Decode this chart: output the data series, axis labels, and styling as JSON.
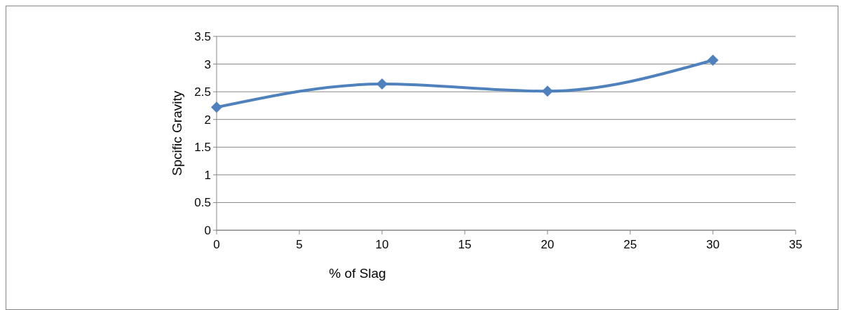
{
  "chart_data": {
    "type": "line",
    "xlabel": "% of Slag",
    "ylabel": "Spcific Gravity",
    "x": [
      0,
      10,
      20,
      30
    ],
    "series": [
      {
        "color": "#4f81bd",
        "values": [
          2.22,
          2.64,
          2.51,
          3.07
        ]
      }
    ],
    "xlim": [
      0,
      35
    ],
    "xticks": [
      0,
      5,
      10,
      15,
      20,
      25,
      30,
      35
    ],
    "ylim": [
      0,
      3.5
    ],
    "yticks": [
      0,
      0.5,
      1,
      1.5,
      2,
      2.5,
      3,
      3.5
    ],
    "grid": "y",
    "marker": "diamond",
    "line_style": "solid"
  }
}
